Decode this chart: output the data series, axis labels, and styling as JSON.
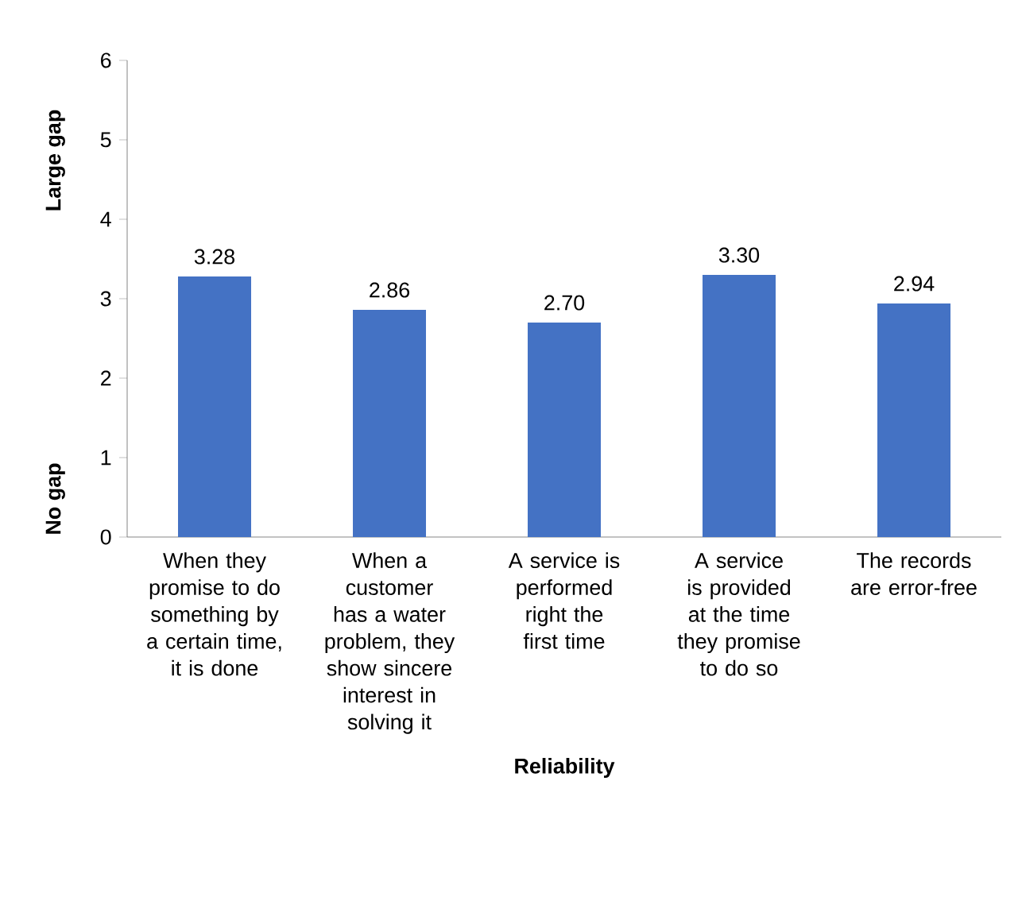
{
  "chart_data": {
    "type": "bar",
    "xlabel": "Reliability",
    "ylabel": "Large gap",
    "annotations": [
      "No gap"
    ],
    "categories": [
      "When they promise to do something by a certain time, it is done",
      "When a customer has a water problem, they show sincere interest in solving it",
      "A service is performed right the first time",
      "A service is provided at the time they promise to do so",
      "The records are error-free"
    ],
    "values": [
      3.28,
      2.86,
      2.7,
      3.3,
      2.94
    ],
    "value_labels": [
      "3.28",
      "2.86",
      "2.70",
      "3.30",
      "2.94"
    ],
    "color": "#4472c4",
    "ylim": [
      0,
      6
    ],
    "yticks": [
      0,
      1,
      2,
      3,
      4,
      5,
      6
    ],
    "grid": false
  }
}
